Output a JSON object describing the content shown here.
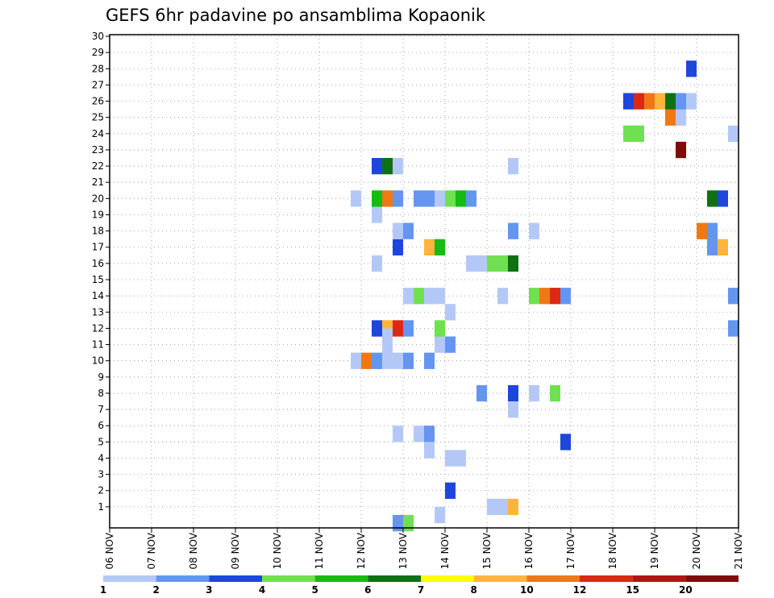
{
  "chart_data": {
    "type": "heatmap",
    "title": "GEFS 6hr padavine po ansamblima Kopaonik",
    "xlabel": "",
    "ylabel": "",
    "x_ticks": [
      "06 NOV",
      "07 NOV",
      "08 NOV",
      "09 NOV",
      "10 NOV",
      "11 NOV",
      "12 NOV",
      "13 NOV",
      "14 NOV",
      "15 NOV",
      "16 NOV",
      "17 NOV",
      "18 NOV",
      "19 NOV",
      "20 NOV",
      "21 NOV"
    ],
    "y_ticks": [
      1,
      2,
      3,
      4,
      5,
      6,
      7,
      8,
      9,
      10,
      11,
      12,
      13,
      14,
      15,
      16,
      17,
      18,
      19,
      20,
      21,
      22,
      23,
      24,
      25,
      26,
      27,
      28,
      29,
      30
    ],
    "xlim": [
      0,
      60
    ],
    "ylim": [
      0,
      30
    ],
    "x_step_hours": 6,
    "grid": true,
    "legend": {
      "position": "bottom",
      "labels": [
        "1",
        "2",
        "3",
        "4",
        "5",
        "6",
        "7",
        "8",
        "10",
        "12",
        "15",
        "20"
      ],
      "colors": [
        "#b4c8f8",
        "#6496f0",
        "#1e46dc",
        "#70e050",
        "#14bc14",
        "#0f7014",
        "#ffff00",
        "#ffb43c",
        "#f07814",
        "#dc2814",
        "#b41414",
        "#820a0a"
      ]
    },
    "cells": [
      {
        "x": 29.5,
        "y": 5.5,
        "v": 1.5
      },
      {
        "x": 30.5,
        "y": 5.5,
        "v": 2.5
      },
      {
        "x": 30.5,
        "y": 4.5,
        "v": 1.5
      },
      {
        "x": 27.5,
        "y": 5.5,
        "v": 1.5
      },
      {
        "x": 27.5,
        "y": 0,
        "v": 2.5
      },
      {
        "x": 28.5,
        "y": 0,
        "v": 4.5
      },
      {
        "x": 32.5,
        "y": 4,
        "v": 1.5
      },
      {
        "x": 33.5,
        "y": 4,
        "v": 1.5
      },
      {
        "x": 32.5,
        "y": 2,
        "v": 3.5
      },
      {
        "x": 31.5,
        "y": 0.5,
        "v": 1.5
      },
      {
        "x": 36.5,
        "y": 1,
        "v": 1.5
      },
      {
        "x": 37.5,
        "y": 1,
        "v": 1.5
      },
      {
        "x": 38.5,
        "y": 1,
        "v": 9
      },
      {
        "x": 35.5,
        "y": 8,
        "v": 2.5
      },
      {
        "x": 38.5,
        "y": 8,
        "v": 3.5
      },
      {
        "x": 38.5,
        "y": 7,
        "v": 1.5
      },
      {
        "x": 40.5,
        "y": 8,
        "v": 1.5
      },
      {
        "x": 42.5,
        "y": 8,
        "v": 4.5
      },
      {
        "x": 43.5,
        "y": 5,
        "v": 3.5
      },
      {
        "x": 27.5,
        "y": 10,
        "v": 1.5
      },
      {
        "x": 28.5,
        "y": 10,
        "v": 2.5
      },
      {
        "x": 26.5,
        "y": 10,
        "v": 1.5
      },
      {
        "x": 30.5,
        "y": 10,
        "v": 2.5
      },
      {
        "x": 23.5,
        "y": 10,
        "v": 1.5
      },
      {
        "x": 24.5,
        "y": 10,
        "v": 11
      },
      {
        "x": 25.5,
        "y": 10,
        "v": 2.5
      },
      {
        "x": 26.5,
        "y": 11,
        "v": 1.5
      },
      {
        "x": 25.5,
        "y": 12,
        "v": 3.5
      },
      {
        "x": 26.5,
        "y": 12,
        "v": 9
      },
      {
        "x": 27.5,
        "y": 12,
        "v": 13.5
      },
      {
        "x": 28.5,
        "y": 12,
        "v": 2.5
      },
      {
        "x": 26.5,
        "y": 11.5,
        "v": 1.5
      },
      {
        "x": 31.5,
        "y": 11,
        "v": 1.5
      },
      {
        "x": 31.5,
        "y": 12,
        "v": 4.5
      },
      {
        "x": 32.5,
        "y": 11,
        "v": 2.5
      },
      {
        "x": 32.5,
        "y": 13,
        "v": 1.5
      },
      {
        "x": 28.5,
        "y": 14,
        "v": 1.5
      },
      {
        "x": 29.5,
        "y": 14,
        "v": 4.5
      },
      {
        "x": 30.5,
        "y": 14,
        "v": 1.5
      },
      {
        "x": 31.5,
        "y": 14,
        "v": 1.5
      },
      {
        "x": 37.5,
        "y": 14,
        "v": 1.5
      },
      {
        "x": 40.5,
        "y": 14,
        "v": 4.5
      },
      {
        "x": 41.5,
        "y": 14,
        "v": 11
      },
      {
        "x": 42.5,
        "y": 14,
        "v": 13.5
      },
      {
        "x": 43.5,
        "y": 14,
        "v": 2.5
      },
      {
        "x": 59.5,
        "y": 14,
        "v": 2.5
      },
      {
        "x": 59.5,
        "y": 12,
        "v": 2.5
      },
      {
        "x": 25.5,
        "y": 16,
        "v": 1.5
      },
      {
        "x": 27.5,
        "y": 17,
        "v": 3.5
      },
      {
        "x": 30.5,
        "y": 17,
        "v": 9
      },
      {
        "x": 31.5,
        "y": 17,
        "v": 5.5
      },
      {
        "x": 34.5,
        "y": 16,
        "v": 1.5
      },
      {
        "x": 35.5,
        "y": 16,
        "v": 1.5
      },
      {
        "x": 36.5,
        "y": 16,
        "v": 4.5
      },
      {
        "x": 37.5,
        "y": 16,
        "v": 4.5
      },
      {
        "x": 38.5,
        "y": 16,
        "v": 6.5
      },
      {
        "x": 27.5,
        "y": 18,
        "v": 1.5
      },
      {
        "x": 28.5,
        "y": 18,
        "v": 2.5
      },
      {
        "x": 38.5,
        "y": 18,
        "v": 2.5
      },
      {
        "x": 40.5,
        "y": 18,
        "v": 1.5
      },
      {
        "x": 56.5,
        "y": 18,
        "v": 11
      },
      {
        "x": 57.5,
        "y": 18,
        "v": 2.5
      },
      {
        "x": 57.5,
        "y": 17,
        "v": 2.5
      },
      {
        "x": 58.5,
        "y": 17,
        "v": 9
      },
      {
        "x": 25.5,
        "y": 19,
        "v": 1.5
      },
      {
        "x": 23.5,
        "y": 20,
        "v": 1.5
      },
      {
        "x": 25.5,
        "y": 20,
        "v": 5.5
      },
      {
        "x": 26.5,
        "y": 20,
        "v": 11
      },
      {
        "x": 27.5,
        "y": 20,
        "v": 2.5
      },
      {
        "x": 29.5,
        "y": 20,
        "v": 2.5
      },
      {
        "x": 30.5,
        "y": 20,
        "v": 2.5
      },
      {
        "x": 31.5,
        "y": 20,
        "v": 1.5
      },
      {
        "x": 32.5,
        "y": 20,
        "v": 4.5
      },
      {
        "x": 33.5,
        "y": 20,
        "v": 5.5
      },
      {
        "x": 34.5,
        "y": 20,
        "v": 2.5
      },
      {
        "x": 57.5,
        "y": 20,
        "v": 6.5
      },
      {
        "x": 58.5,
        "y": 20,
        "v": 3.5
      },
      {
        "x": 38.5,
        "y": 22,
        "v": 1.5
      },
      {
        "x": 25.5,
        "y": 22,
        "v": 3.5
      },
      {
        "x": 26.5,
        "y": 22,
        "v": 6.5
      },
      {
        "x": 27.5,
        "y": 22,
        "v": 1.5
      },
      {
        "x": 54.5,
        "y": 23,
        "v": 22
      },
      {
        "x": 49.5,
        "y": 24,
        "v": 4.5
      },
      {
        "x": 50.5,
        "y": 24,
        "v": 4.5
      },
      {
        "x": 59.5,
        "y": 24,
        "v": 1.5
      },
      {
        "x": 53.5,
        "y": 25,
        "v": 11
      },
      {
        "x": 54.5,
        "y": 25,
        "v": 1.5
      },
      {
        "x": 49.5,
        "y": 26,
        "v": 3.5
      },
      {
        "x": 50.5,
        "y": 26,
        "v": 13.5
      },
      {
        "x": 51.5,
        "y": 26,
        "v": 11
      },
      {
        "x": 52.5,
        "y": 26,
        "v": 9
      },
      {
        "x": 53.5,
        "y": 26,
        "v": 6.5
      },
      {
        "x": 54.5,
        "y": 26,
        "v": 2.5
      },
      {
        "x": 55.5,
        "y": 26,
        "v": 1.5
      },
      {
        "x": 55.5,
        "y": 28,
        "v": 3.5
      }
    ]
  }
}
